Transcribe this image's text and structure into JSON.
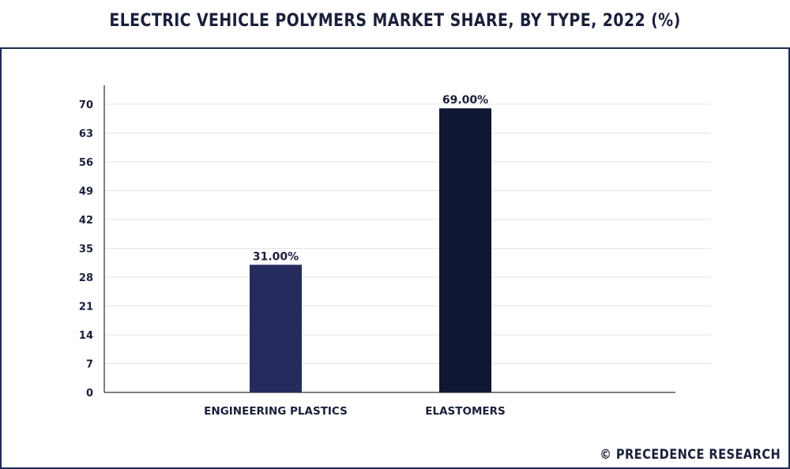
{
  "page": {
    "title": "ELECTRIC VEHICLE POLYMERS MARKET SHARE, BY TYPE, 2022 (%)",
    "brand": "© PRECEDENCE RESEARCH"
  },
  "colors": {
    "frame": "#1d2a55",
    "bar_engineering_plastics": "#252b5c",
    "bar_elastomers": "#0f1733",
    "text": "#1a1f3a",
    "grid": "#e3e3e3"
  },
  "chart_data": {
    "type": "bar",
    "title": "ELECTRIC VEHICLE POLYMERS MARKET SHARE, BY TYPE, 2022 (%)",
    "xlabel": "",
    "ylabel": "",
    "categories": [
      "ENGINEERING PLASTICS",
      "ELASTOMERS"
    ],
    "values": [
      31,
      69
    ],
    "data_labels": [
      "31.00%",
      "69.00%"
    ],
    "yticks": [
      0,
      7,
      14,
      21,
      28,
      35,
      42,
      49,
      56,
      63,
      70
    ],
    "ylim": [
      0,
      70
    ],
    "grid": true,
    "legend": "none"
  }
}
